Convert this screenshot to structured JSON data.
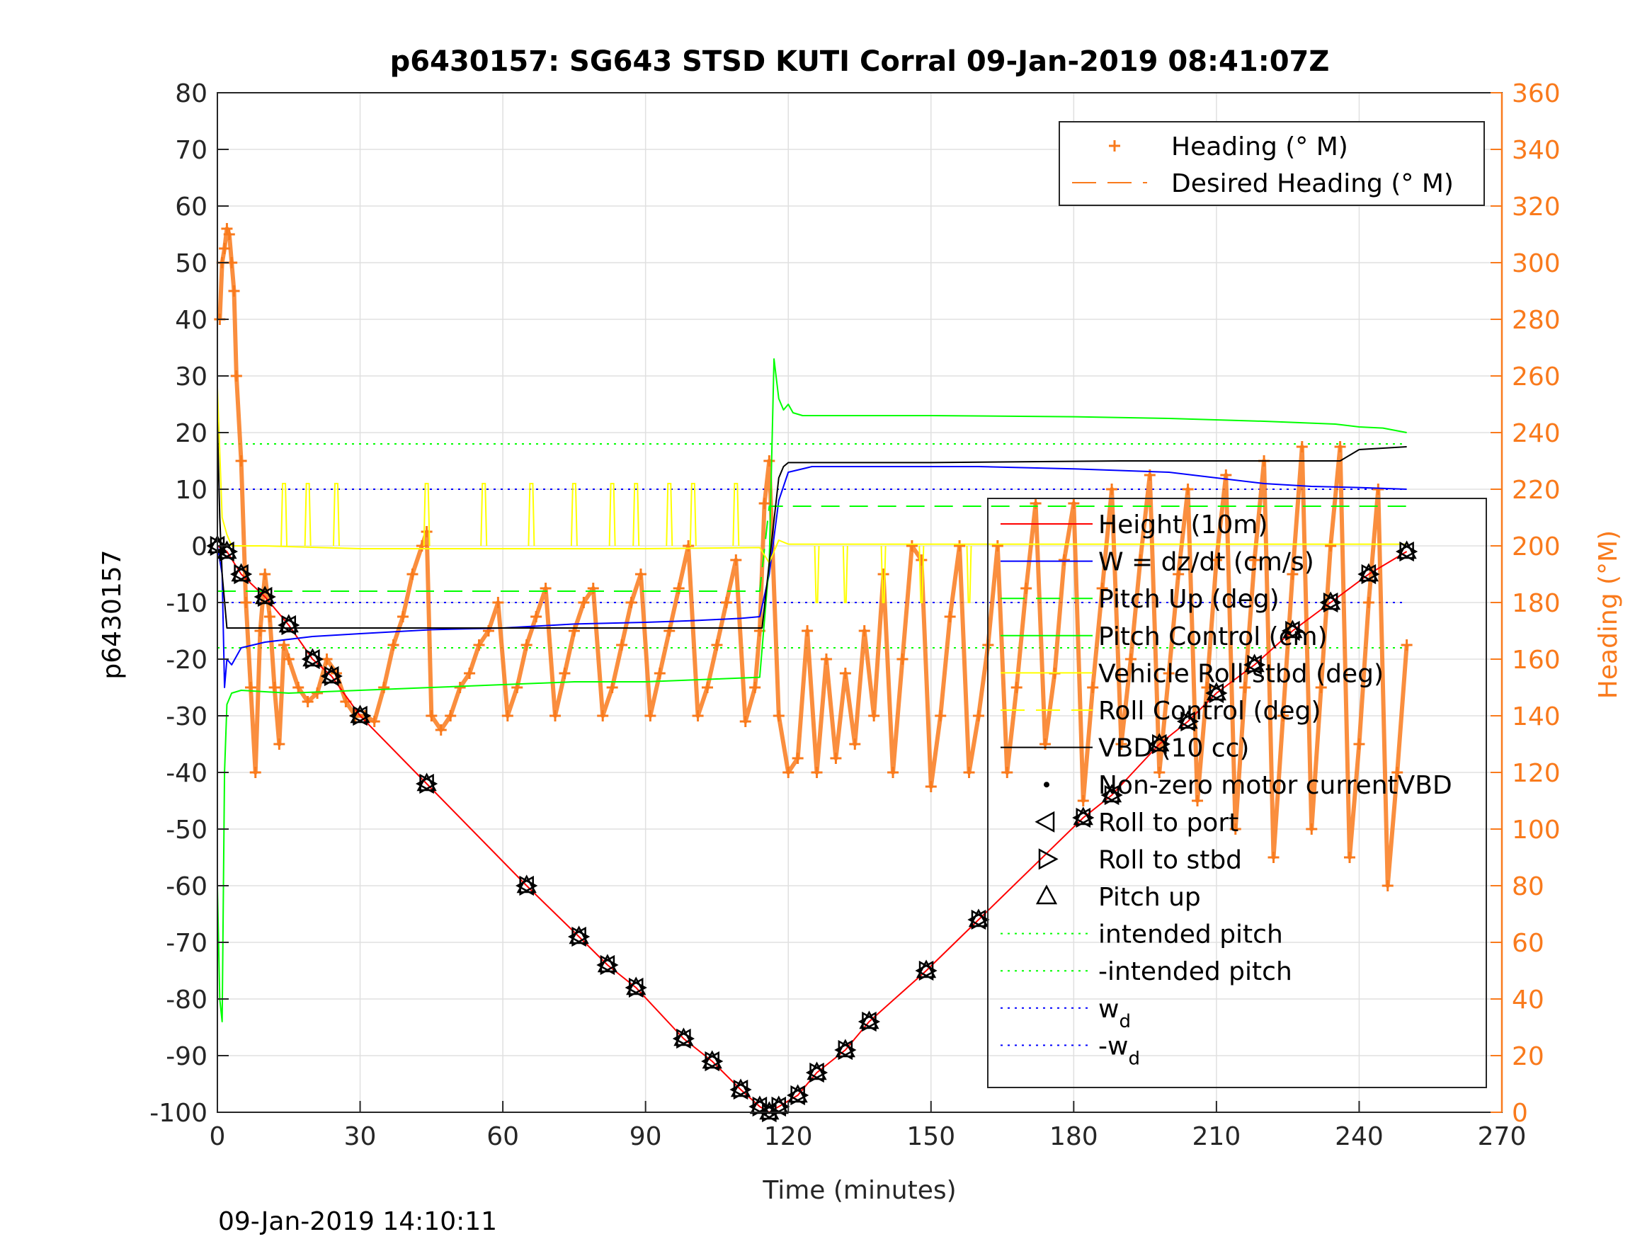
{
  "chart_data": {
    "type": "line",
    "title": "p6430157: SG643 STSD KUTI Corral 09-Jan-2019 08:41:07Z",
    "xlabel": "Time (minutes)",
    "ylabel_left": "p6430157",
    "ylabel_right": "Heading (°M)",
    "footer_timestamp": "09-Jan-2019 14:10:11",
    "xlim": [
      0,
      270
    ],
    "ylim_left": [
      -100,
      80
    ],
    "ylim_right": [
      0,
      360
    ],
    "x_ticks": [
      "0",
      "30",
      "60",
      "90",
      "120",
      "150",
      "180",
      "210",
      "240",
      "270"
    ],
    "x_tick_values": [
      0,
      30,
      60,
      90,
      120,
      150,
      180,
      210,
      240,
      270
    ],
    "y_ticks_left": [
      "-100",
      "-90",
      "-80",
      "-70",
      "-60",
      "-50",
      "-40",
      "-30",
      "-20",
      "-10",
      "0",
      "10",
      "20",
      "30",
      "40",
      "50",
      "60",
      "70",
      "80"
    ],
    "y_tick_values_left": [
      -100,
      -90,
      -80,
      -70,
      -60,
      -50,
      -40,
      -30,
      -20,
      -10,
      0,
      10,
      20,
      30,
      40,
      50,
      60,
      70,
      80
    ],
    "y_ticks_right": [
      "0",
      "20",
      "40",
      "60",
      "80",
      "100",
      "120",
      "140",
      "160",
      "180",
      "200",
      "220",
      "240",
      "260",
      "280",
      "300",
      "320",
      "340",
      "360"
    ],
    "y_tick_values_right": [
      0,
      20,
      40,
      60,
      80,
      100,
      120,
      140,
      160,
      180,
      200,
      220,
      240,
      260,
      280,
      300,
      320,
      340,
      360
    ],
    "grid": true,
    "legend_top": {
      "placement": "top-right",
      "entries": [
        {
          "label": "Heading (° M)",
          "color": "#f97a1c",
          "style": "plus"
        },
        {
          "label": "Desired Heading (° M)",
          "color": "#f97a1c",
          "style": "dash"
        }
      ]
    },
    "legend_main": {
      "placement": "right",
      "entries": [
        {
          "label": "Height (10m)",
          "color": "#ff0000",
          "style": "line"
        },
        {
          "label": "W = dz/dt (cm/s)",
          "color": "#0000ff",
          "style": "line"
        },
        {
          "label": "Pitch Up (deg)",
          "color": "#00ff00",
          "style": "dash"
        },
        {
          "label": "Pitch Control (cm)",
          "color": "#00ff00",
          "style": "line"
        },
        {
          "label": "Vehicle Roll stbd (deg)",
          "color": "#ffff00",
          "style": "line"
        },
        {
          "label": "Roll Control (deg)",
          "color": "#ffff00",
          "style": "dash"
        },
        {
          "label": "VBD (10 cc)",
          "color": "#000000",
          "style": "line"
        },
        {
          "label": "Non-zero motor currentVBD",
          "color": "#000000",
          "style": "dot"
        },
        {
          "label": "Roll to port",
          "color": "#000000",
          "style": "tri-left"
        },
        {
          "label": "Roll to stbd",
          "color": "#000000",
          "style": "tri-right"
        },
        {
          "label": "Pitch up",
          "color": "#000000",
          "style": "tri-up"
        },
        {
          "label": "intended pitch",
          "color": "#00ff00",
          "style": "dot-line"
        },
        {
          "label": "-intended pitch",
          "color": "#00ff00",
          "style": "dot-line"
        },
        {
          "label": "w",
          "sub": "d",
          "color": "#0000ff",
          "style": "dot-line"
        },
        {
          "label": "-w",
          "sub": "d",
          "color": "#0000ff",
          "style": "dot-line"
        }
      ]
    },
    "reference_lines": {
      "intended_pitch": 18,
      "neg_intended_pitch": -18,
      "w_d": 10,
      "neg_w_d": -10
    },
    "series": [
      {
        "name": "Height (10m)",
        "color": "#ff0000",
        "x": [
          0,
          2,
          5,
          10,
          15,
          20,
          24,
          30,
          44,
          65,
          76,
          82,
          88,
          98,
          104,
          110,
          114,
          116,
          118,
          122,
          126,
          132,
          137,
          149,
          160,
          182,
          188,
          198,
          204,
          210,
          218,
          226,
          234,
          242,
          250
        ],
        "y": [
          0,
          -1,
          -5,
          -9,
          -14,
          -20,
          -23,
          -30,
          -42,
          -60,
          -69,
          -74,
          -78,
          -87,
          -91,
          -96,
          -99,
          -100,
          -99,
          -97,
          -93,
          -89,
          -84,
          -75,
          -66,
          -48,
          -44,
          -35,
          -31,
          -26,
          -21,
          -15,
          -10,
          -5,
          -1
        ]
      },
      {
        "name": "W = dz/dt (cm/s)",
        "color": "#0000ff",
        "x": [
          0,
          1,
          1.5,
          2,
          3,
          5,
          10,
          20,
          30,
          45,
          60,
          75,
          90,
          100,
          110,
          114,
          116,
          118,
          120,
          125,
          140,
          160,
          180,
          200,
          210,
          220,
          230,
          240,
          250
        ],
        "y": [
          0,
          -5,
          -25,
          -20,
          -21,
          -18,
          -17,
          -16,
          -15.5,
          -14.8,
          -14.5,
          -13.8,
          -13.5,
          -13.2,
          -12.8,
          -12.5,
          -5,
          8,
          13,
          14,
          14,
          14,
          13.6,
          13,
          12,
          11,
          10.5,
          10.3,
          10
        ]
      },
      {
        "name": "Pitch Control (cm)",
        "color": "#00ff00",
        "x": [
          0,
          0.5,
          1,
          1.5,
          2,
          3,
          5,
          15,
          30,
          45,
          60,
          75,
          90,
          105,
          114,
          116,
          117,
          118,
          119,
          120,
          121,
          123,
          130,
          150,
          180,
          200,
          220,
          235,
          240,
          245,
          250
        ],
        "y": [
          -60,
          -80,
          -84,
          -40,
          -28,
          -26,
          -25.5,
          -26,
          -25.5,
          -25,
          -24.5,
          -24,
          -24,
          -23.5,
          -23.2,
          -3,
          33,
          26,
          24,
          25,
          23.5,
          23,
          23,
          23,
          22.8,
          22.5,
          22,
          21.5,
          21,
          20.8,
          20
        ]
      },
      {
        "name": "Pitch Up (deg)",
        "color": "#00ff00",
        "dash": true,
        "x": [
          0,
          114,
          116,
          250
        ],
        "y": [
          -8,
          -8,
          7,
          7
        ]
      },
      {
        "name": "Vehicle Roll stbd (deg)",
        "color": "#ffff00",
        "x": [
          0,
          1,
          2,
          3,
          10,
          30,
          60,
          90,
          114,
          116,
          118,
          120,
          150,
          200,
          250
        ],
        "y": [
          28,
          5,
          2,
          0,
          0,
          -0.5,
          -0.5,
          -0.5,
          -0.3,
          -3,
          1,
          0.3,
          0.3,
          0.3,
          0.3
        ]
      },
      {
        "name": "VBD (10 cc)",
        "color": "#000000",
        "x": [
          0,
          0.5,
          1,
          2,
          114,
          114.5,
          116,
          118,
          119,
          120,
          150,
          190,
          210,
          236,
          238,
          240,
          250
        ],
        "y": [
          22,
          5,
          -5,
          -14.5,
          -14.5,
          -14.5,
          -3,
          12,
          14,
          14.7,
          14.7,
          15,
          15,
          15,
          16,
          17,
          17.5
        ]
      }
    ],
    "roll_spikes_x": [
      14,
      19,
      25,
      44,
      56,
      66,
      75,
      83,
      88,
      95,
      100,
      109
    ],
    "roll_spikes_neg_x": [
      126,
      132,
      140,
      148,
      158
    ],
    "heading_series": {
      "name": "Heading (° M)",
      "color": "#f97a1c",
      "x": [
        0.5,
        1,
        1.5,
        2,
        2.5,
        3,
        3.5,
        4,
        5,
        6,
        7,
        8,
        9,
        10,
        11,
        12,
        13,
        14,
        15,
        17,
        19,
        21,
        23,
        25,
        27,
        29,
        31,
        33,
        35,
        37,
        39,
        41,
        43,
        44,
        45,
        47,
        49,
        51,
        53,
        55,
        57,
        59,
        61,
        63,
        65,
        67,
        69,
        71,
        73,
        75,
        77,
        79,
        81,
        83,
        85,
        87,
        89,
        91,
        93,
        95,
        97,
        99,
        101,
        103,
        105,
        107,
        109,
        111,
        113,
        114,
        115,
        116,
        118,
        120,
        122,
        124,
        126,
        128,
        130,
        132,
        134,
        136,
        138,
        140,
        142,
        144,
        146,
        148,
        150,
        152,
        154,
        156,
        158,
        160,
        162,
        164,
        166,
        168,
        170,
        172,
        174,
        176,
        178,
        180,
        182,
        184,
        186,
        188,
        190,
        192,
        194,
        196,
        198,
        200,
        202,
        204,
        206,
        208,
        210,
        212,
        214,
        216,
        218,
        220,
        222,
        224,
        226,
        228,
        230,
        232,
        234,
        236,
        238,
        240,
        242,
        244,
        246,
        248,
        250
      ],
      "y": [
        280,
        300,
        305,
        312,
        310,
        300,
        290,
        260,
        230,
        180,
        150,
        120,
        170,
        190,
        175,
        150,
        130,
        165,
        160,
        150,
        145,
        148,
        160,
        155,
        145,
        140,
        140,
        138,
        150,
        165,
        175,
        190,
        200,
        205,
        140,
        135,
        140,
        150,
        155,
        165,
        170,
        180,
        140,
        150,
        165,
        175,
        185,
        140,
        155,
        170,
        180,
        185,
        140,
        150,
        165,
        180,
        190,
        140,
        155,
        170,
        185,
        200,
        140,
        150,
        165,
        180,
        195,
        138,
        150,
        170,
        215,
        230,
        140,
        120,
        125,
        170,
        120,
        160,
        125,
        155,
        130,
        170,
        140,
        190,
        120,
        160,
        200,
        195,
        115,
        140,
        175,
        200,
        120,
        140,
        165,
        200,
        120,
        150,
        185,
        215,
        130,
        155,
        195,
        215,
        110,
        150,
        185,
        220,
        130,
        160,
        195,
        225,
        120,
        155,
        190,
        220,
        110,
        150,
        195,
        225,
        100,
        150,
        195,
        230,
        90,
        140,
        190,
        235,
        100,
        150,
        200,
        235,
        90,
        130,
        180,
        220,
        80,
        120,
        165
      ]
    }
  }
}
